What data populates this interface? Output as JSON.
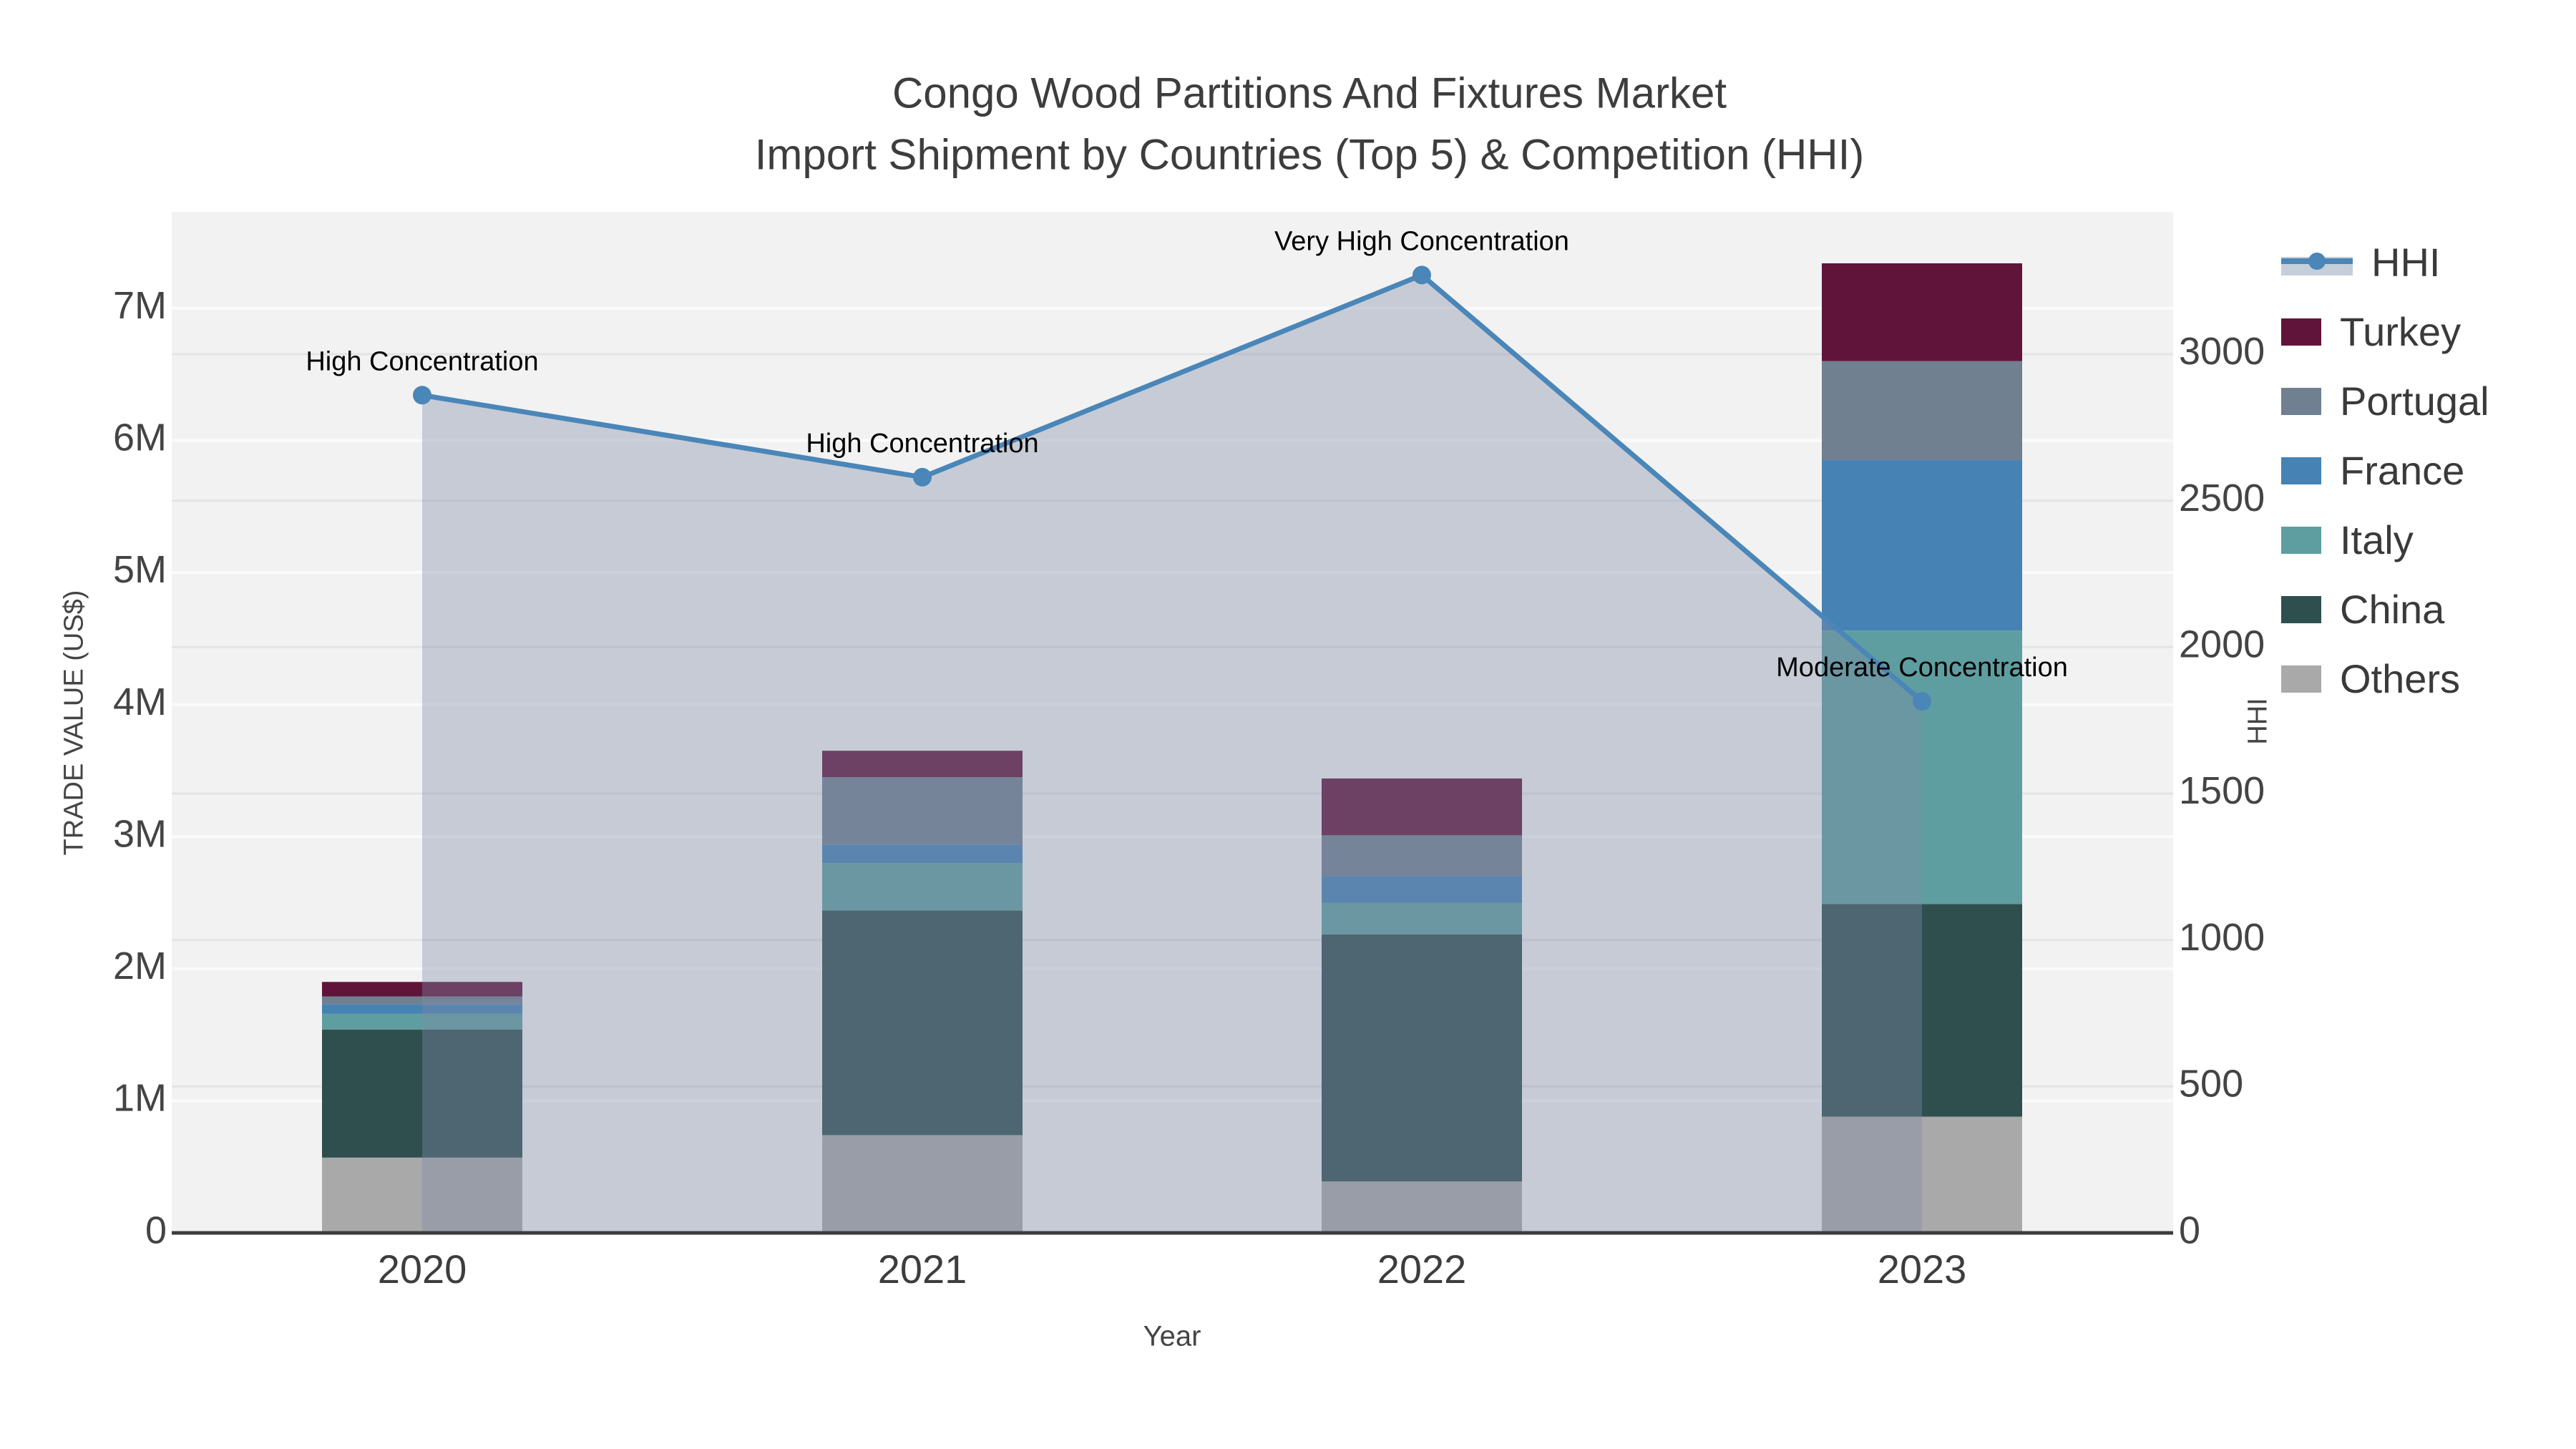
{
  "title": {
    "line1": "Congo Wood Partitions And Fixtures Market",
    "line2": "Import Shipment by Countries (Top 5) & Competition (HHI)"
  },
  "axes": {
    "x_title": "Year",
    "left_title": "TRADE VALUE (US$)",
    "right_title": "HHI",
    "left_tick_labels": [
      "0",
      "1M",
      "2M",
      "3M",
      "4M",
      "5M",
      "6M",
      "7M"
    ],
    "left_tick_values": [
      0,
      1,
      2,
      3,
      4,
      5,
      6,
      7
    ],
    "right_tick_labels": [
      "0",
      "500",
      "1000",
      "1500",
      "2000",
      "2500",
      "3000"
    ],
    "right_tick_values": [
      0,
      500,
      1000,
      1500,
      2000,
      2500,
      3000
    ]
  },
  "legend": {
    "items": [
      {
        "label": "HHI",
        "type": "line",
        "color": "#4a86b8"
      },
      {
        "label": "Turkey",
        "type": "swatch",
        "color": "#61143a"
      },
      {
        "label": "Portugal",
        "type": "swatch",
        "color": "#708090"
      },
      {
        "label": "France",
        "type": "swatch",
        "color": "#4682b4"
      },
      {
        "label": "Italy",
        "type": "swatch",
        "color": "#5f9ea0"
      },
      {
        "label": "China",
        "type": "swatch",
        "color": "#2f4f4f"
      },
      {
        "label": "Others",
        "type": "swatch",
        "color": "#a9a9a9"
      }
    ]
  },
  "chart_data": [
    {
      "type": "bar",
      "stacked": true,
      "title": "Import Shipment by Countries (Top 5)",
      "xlabel": "Year",
      "ylabel": "TRADE VALUE (US$)",
      "unit": "million US$",
      "categories": [
        "2020",
        "2021",
        "2022",
        "2023"
      ],
      "ylim": [
        0,
        7.73
      ],
      "grid": true,
      "series": [
        {
          "name": "Others",
          "color": "#a9a9a9",
          "values": [
            0.57,
            0.74,
            0.39,
            0.88
          ]
        },
        {
          "name": "China",
          "color": "#2f4f4f",
          "values": [
            0.97,
            1.7,
            1.87,
            1.61
          ]
        },
        {
          "name": "Italy",
          "color": "#5f9ea0",
          "values": [
            0.12,
            0.36,
            0.24,
            2.07
          ]
        },
        {
          "name": "France",
          "color": "#4682b4",
          "values": [
            0.07,
            0.14,
            0.2,
            1.29
          ]
        },
        {
          "name": "Portugal",
          "color": "#708090",
          "values": [
            0.06,
            0.51,
            0.31,
            0.75
          ]
        },
        {
          "name": "Turkey",
          "color": "#61143a",
          "values": [
            0.11,
            0.2,
            0.43,
            0.74
          ]
        }
      ],
      "totals": [
        1.9,
        3.65,
        3.44,
        7.34
      ]
    },
    {
      "type": "line",
      "name": "HHI",
      "axis": "right",
      "color": "#4a86b8",
      "area": true,
      "area_color": "rgba(125,139,168,0.38)",
      "x": [
        "2020",
        "2021",
        "2022",
        "2023"
      ],
      "values": [
        2860,
        2580,
        3270,
        1815
      ],
      "ylim": [
        0,
        3486
      ],
      "annotations": [
        "High Concentration",
        "High Concentration",
        "Very High Concentration",
        "Moderate Concentration"
      ],
      "legend_position": "top-right-outside"
    }
  ]
}
